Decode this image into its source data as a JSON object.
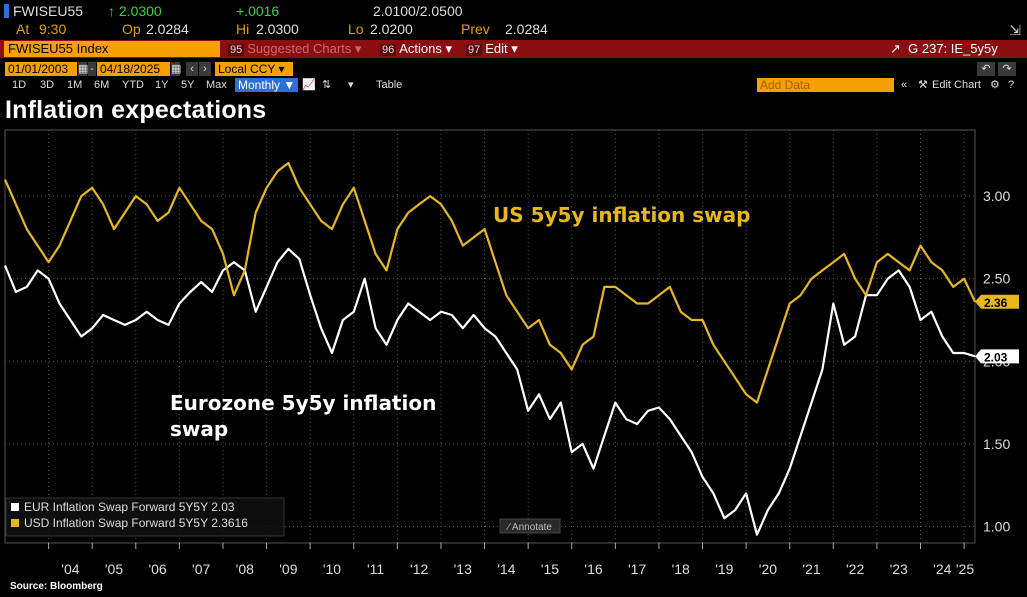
{
  "ticker": {
    "symbol": "FWISEU55",
    "last": "↑ 2.0300",
    "change": "+.0016",
    "bid_ask": "2.0100/2.0500",
    "at_label": "At",
    "at_time": "9:30",
    "op_label": "Op",
    "op_value": "2.0284",
    "hi_label": "Hi",
    "hi_value": "2.0300",
    "lo_label": "Lo",
    "lo_value": "2.0200",
    "prev_label": "Prev",
    "prev_value": "2.0284"
  },
  "toolbar": {
    "index_label": "FWISEU55 Index",
    "suggested_num": "95",
    "suggested_label": "Suggested Charts ▾",
    "actions_num": "96",
    "actions_label": "Actions ▾",
    "edit_num": "97",
    "edit_label": "Edit ▾",
    "chart_ref": "G 237: IE_5y5y",
    "start_date": "01/01/2003",
    "end_date": "04/18/2025",
    "currency": "Local CCY",
    "periods": [
      "1D",
      "3D",
      "1M",
      "6M",
      "YTD",
      "1Y",
      "5Y",
      "Max"
    ],
    "frequency": "Monthly ▼",
    "table_label": "Table",
    "add_data_placeholder": "Add Data",
    "edit_chart_label": "Edit Chart"
  },
  "title": "Inflation expectations",
  "source": "Source: Bloomberg",
  "colors": {
    "background": "#000000",
    "eur": "#ffffff",
    "usd": "#e6b81e",
    "accent": "#f5a000",
    "toolbar": "#8a0e12"
  },
  "chart_data": {
    "type": "line",
    "x": [
      "2003-01",
      "2003-04",
      "2003-07",
      "2003-10",
      "2004-01",
      "2004-04",
      "2004-07",
      "2004-10",
      "2005-01",
      "2005-04",
      "2005-07",
      "2005-10",
      "2006-01",
      "2006-04",
      "2006-07",
      "2006-10",
      "2007-01",
      "2007-04",
      "2007-07",
      "2007-10",
      "2008-01",
      "2008-04",
      "2008-07",
      "2008-10",
      "2009-01",
      "2009-04",
      "2009-07",
      "2009-10",
      "2010-01",
      "2010-04",
      "2010-07",
      "2010-10",
      "2011-01",
      "2011-04",
      "2011-07",
      "2011-10",
      "2012-01",
      "2012-04",
      "2012-07",
      "2012-10",
      "2013-01",
      "2013-04",
      "2013-07",
      "2013-10",
      "2014-01",
      "2014-04",
      "2014-07",
      "2014-10",
      "2015-01",
      "2015-04",
      "2015-07",
      "2015-10",
      "2016-01",
      "2016-04",
      "2016-07",
      "2016-10",
      "2017-01",
      "2017-04",
      "2017-07",
      "2017-10",
      "2018-01",
      "2018-04",
      "2018-07",
      "2018-10",
      "2019-01",
      "2019-04",
      "2019-07",
      "2019-10",
      "2020-01",
      "2020-04",
      "2020-07",
      "2020-10",
      "2021-01",
      "2021-04",
      "2021-07",
      "2021-10",
      "2022-01",
      "2022-04",
      "2022-07",
      "2022-10",
      "2023-01",
      "2023-04",
      "2023-07",
      "2023-10",
      "2024-01",
      "2024-04",
      "2024-07",
      "2024-10",
      "2025-01",
      "2025-04"
    ],
    "series": [
      {
        "name": "EUR Inflation Swap Forward 5Y5Y",
        "legend": "EUR Inflation Swap Forward 5Y5Y 2.03",
        "color": "#ffffff",
        "values": [
          2.58,
          2.42,
          2.45,
          2.55,
          2.5,
          2.35,
          2.25,
          2.15,
          2.2,
          2.28,
          2.25,
          2.22,
          2.25,
          2.3,
          2.25,
          2.22,
          2.35,
          2.42,
          2.48,
          2.42,
          2.55,
          2.6,
          2.55,
          2.3,
          2.45,
          2.6,
          2.68,
          2.62,
          2.4,
          2.2,
          2.05,
          2.25,
          2.3,
          2.5,
          2.2,
          2.1,
          2.25,
          2.35,
          2.3,
          2.25,
          2.3,
          2.28,
          2.2,
          2.28,
          2.2,
          2.15,
          2.05,
          1.95,
          1.7,
          1.8,
          1.65,
          1.75,
          1.45,
          1.5,
          1.35,
          1.55,
          1.75,
          1.65,
          1.62,
          1.7,
          1.72,
          1.65,
          1.55,
          1.45,
          1.3,
          1.2,
          1.05,
          1.1,
          1.2,
          0.95,
          1.1,
          1.2,
          1.35,
          1.55,
          1.75,
          1.95,
          2.35,
          2.1,
          2.15,
          2.4,
          2.4,
          2.5,
          2.55,
          2.45,
          2.25,
          2.3,
          2.15,
          2.05,
          2.05,
          2.03
        ]
      },
      {
        "name": "USD Inflation Swap Forward 5Y5Y",
        "legend": "USD Inflation Swap Forward 5Y5Y 2.3616",
        "color": "#e6b81e",
        "values": [
          3.1,
          2.95,
          2.8,
          2.7,
          2.6,
          2.7,
          2.85,
          3.0,
          3.05,
          2.95,
          2.8,
          2.9,
          3.0,
          2.95,
          2.85,
          2.9,
          3.05,
          2.95,
          2.85,
          2.8,
          2.65,
          2.4,
          2.55,
          2.9,
          3.05,
          3.15,
          3.2,
          3.05,
          2.95,
          2.85,
          2.8,
          2.95,
          3.05,
          2.85,
          2.65,
          2.55,
          2.8,
          2.9,
          2.95,
          3.0,
          2.95,
          2.85,
          2.7,
          2.75,
          2.8,
          2.6,
          2.4,
          2.3,
          2.2,
          2.25,
          2.1,
          2.05,
          1.95,
          2.1,
          2.15,
          2.45,
          2.45,
          2.4,
          2.35,
          2.35,
          2.4,
          2.45,
          2.3,
          2.25,
          2.25,
          2.1,
          2.0,
          1.9,
          1.8,
          1.75,
          1.95,
          2.15,
          2.35,
          2.4,
          2.5,
          2.55,
          2.6,
          2.65,
          2.5,
          2.4,
          2.6,
          2.65,
          2.6,
          2.55,
          2.7,
          2.6,
          2.55,
          2.45,
          2.5,
          2.36
        ]
      }
    ],
    "annotations": [
      "US 5y5y inflation swap",
      "Eurozone 5y5y inflation swap"
    ],
    "y_ticks": [
      "3.00",
      "2.50",
      "2.00",
      "1.50",
      "1.00"
    ],
    "y_tick_values": [
      3.0,
      2.5,
      2.0,
      1.5,
      1.0
    ],
    "x_ticks": [
      "'04",
      "'05",
      "'06",
      "'07",
      "'08",
      "'09",
      "'10",
      "'11",
      "'12",
      "'13",
      "'14",
      "'15",
      "'16",
      "'17",
      "'18",
      "'19",
      "'20",
      "'21",
      "'22",
      "'23",
      "'24",
      "'25"
    ],
    "ylim": [
      0.9,
      3.4
    ],
    "xlim": [
      "2003-01",
      "2025-04"
    ],
    "annotate_label": "Annotate",
    "legend_position": "bottom-left",
    "grid": "dotted"
  }
}
